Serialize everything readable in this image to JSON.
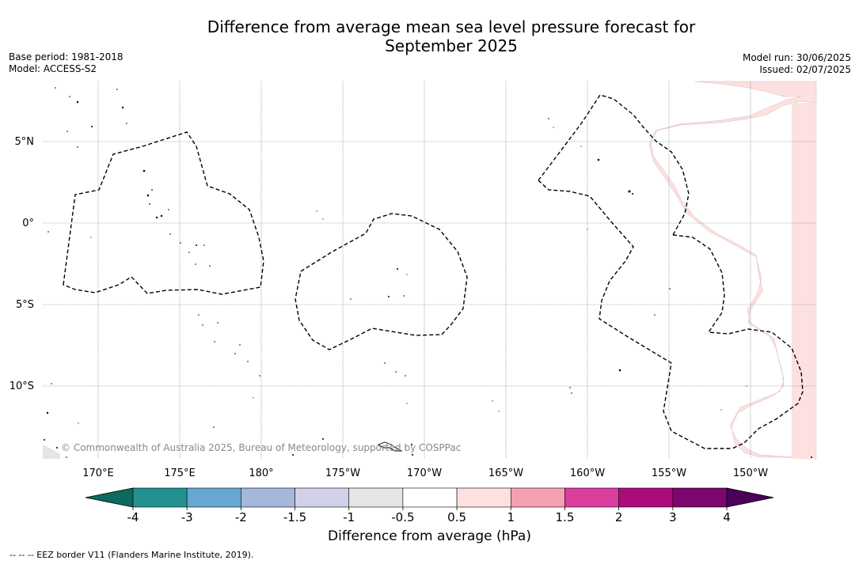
{
  "title_line1": "Difference from average mean sea level pressure forecast for",
  "title_line2": "September 2025",
  "meta_left": {
    "base_period": "Base period: 1981-2018",
    "model": "Model: ACCESS-S2"
  },
  "meta_right": {
    "model_run": "Model run: 30/06/2025",
    "issued": "Issued: 02/07/2025"
  },
  "copyright": "© Commonwealth of Australia 2025, Bureau of Meteorology, supported by COSPPac",
  "lat_labels": [
    "5°N",
    "0°",
    "5°S",
    "10°S"
  ],
  "lon_labels": [
    "170°E",
    "175°E",
    "180°",
    "175°W",
    "170°W",
    "165°W",
    "160°W",
    "155°W",
    "150°W"
  ],
  "colorbar": {
    "label": "Difference from average (hPa)",
    "ticks": [
      "-4",
      "-3",
      "-2",
      "-1.5",
      "-1",
      "-0.5",
      "0.5",
      "1",
      "1.5",
      "2",
      "3",
      "4"
    ],
    "colors": {
      "under": "#0c6b5e",
      "bins": [
        "#22918f",
        "#66a8d1",
        "#a5b8db",
        "#d1d1ea",
        "#e5e5e5",
        "#ffffff",
        "#fde0e0",
        "#f7a0b4",
        "#da3e9f",
        "#aa0d7b",
        "#7c076e"
      ],
      "over": "#4b005a"
    }
  },
  "positive_anomaly_color": "#fde0e0",
  "footnote": "-- -- -- EEZ border V11 (Flanders Marine Institute, 2019)."
}
